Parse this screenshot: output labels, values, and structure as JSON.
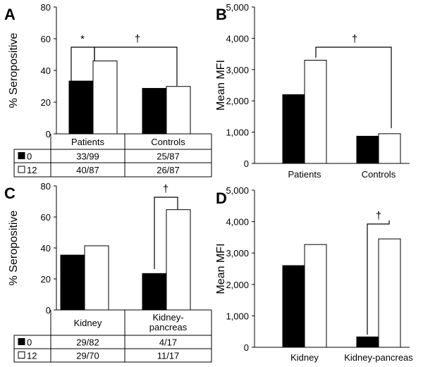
{
  "chart_data": [
    {
      "panel": "A",
      "type": "bar",
      "ylabel": "% Seropositive",
      "ylim": [
        0,
        80
      ],
      "yticks": [
        "0",
        "20",
        "40",
        "60",
        "80"
      ],
      "categories": [
        "Patients",
        "Controls"
      ],
      "series": [
        {
          "name": "0",
          "values": [
            33.3,
            28.7
          ],
          "color": "#000000"
        },
        {
          "name": "12",
          "values": [
            46.0,
            29.9
          ],
          "color": "#ffffff"
        }
      ],
      "annotations": [
        {
          "symbol": "*",
          "between": "Patients 0 vs Patients 12"
        },
        {
          "symbol": "†",
          "between": "Patients 12 vs Controls 12"
        }
      ],
      "table": {
        "rows": [
          {
            "label": "0",
            "cells": [
              "33/99",
              "25/87"
            ]
          },
          {
            "label": "12",
            "cells": [
              "40/87",
              "26/87"
            ]
          }
        ]
      }
    },
    {
      "panel": "B",
      "type": "bar",
      "ylabel": "Mean MFI",
      "ylim": [
        0,
        5000
      ],
      "yticks": [
        "0",
        "1,000",
        "2,000",
        "3,000",
        "4,000",
        "5,000"
      ],
      "categories": [
        "Patients",
        "Controls"
      ],
      "series": [
        {
          "name": "0",
          "values": [
            2200,
            870
          ],
          "color": "#000000"
        },
        {
          "name": "12",
          "values": [
            3300,
            950
          ],
          "color": "#ffffff"
        }
      ],
      "annotations": [
        {
          "symbol": "†",
          "between": "Patients 12 vs Controls 12"
        }
      ]
    },
    {
      "panel": "C",
      "type": "bar",
      "ylabel": "% Seropositive",
      "ylim": [
        0,
        80
      ],
      "yticks": [
        "0",
        "20",
        "40",
        "60",
        "80"
      ],
      "categories": [
        "Kidney",
        "Kidney-pancreas"
      ],
      "series": [
        {
          "name": "0",
          "values": [
            35.4,
            23.5
          ],
          "color": "#000000"
        },
        {
          "name": "12",
          "values": [
            41.4,
            64.7
          ],
          "color": "#ffffff"
        }
      ],
      "annotations": [
        {
          "symbol": "†",
          "between": "Kidney-pancreas 0 vs Kidney-pancreas 12"
        }
      ],
      "table": {
        "headers": [
          "Kidney",
          "Kidney-\npancreas"
        ],
        "rows": [
          {
            "label": "0",
            "cells": [
              "29/82",
              "4/17"
            ]
          },
          {
            "label": "12",
            "cells": [
              "29/70",
              "11/17"
            ]
          }
        ]
      }
    },
    {
      "panel": "D",
      "type": "bar",
      "ylabel": "Mean MFI",
      "ylim": [
        0,
        5000
      ],
      "yticks": [
        "0",
        "1,000",
        "2,000",
        "3,000",
        "4,000",
        "5,000"
      ],
      "categories": [
        "Kidney",
        "Kidney-pancreas"
      ],
      "series": [
        {
          "name": "0",
          "values": [
            2600,
            330
          ],
          "color": "#000000"
        },
        {
          "name": "12",
          "values": [
            3270,
            3450
          ],
          "color": "#ffffff"
        }
      ],
      "annotations": [
        {
          "symbol": "†",
          "between": "Kidney-pancreas 0 vs Kidney-pancreas 12"
        }
      ]
    }
  ]
}
